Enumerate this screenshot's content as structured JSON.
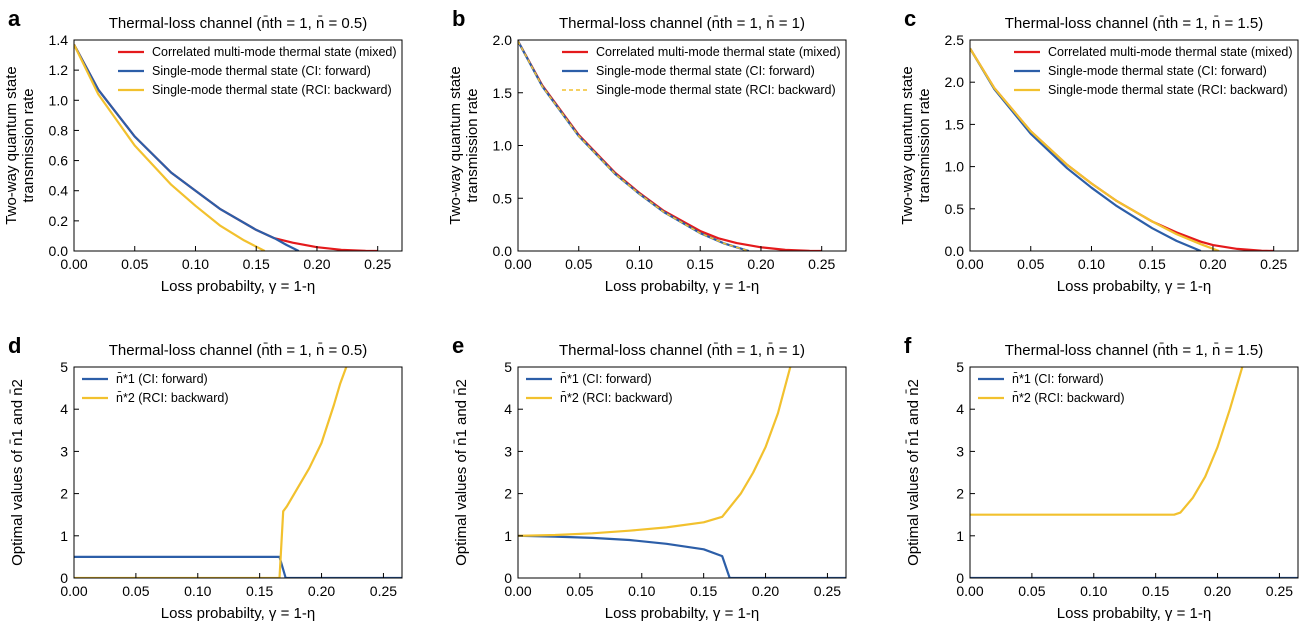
{
  "chart_data": [
    {
      "panel": "a",
      "type": "line",
      "title": "Thermal-loss channel (n̄th = 1, n̄ = 0.5)",
      "xlabel": "Loss probabilty, γ = 1-η",
      "ylabel": [
        "Two-way quantum state",
        "transmission rate"
      ],
      "xlim": [
        0,
        0.27
      ],
      "ylim": [
        0,
        1.4
      ],
      "xticks": [
        "0.00",
        "0.05",
        "0.10",
        "0.15",
        "0.20",
        "0.25"
      ],
      "yticks": [
        "0.0",
        "0.2",
        "0.4",
        "0.6",
        "0.8",
        "1.0",
        "1.2",
        "1.4"
      ],
      "legend": "top-right",
      "series": [
        {
          "name": "Correlated multi-mode thermal state (mixed)",
          "color": "#e41a1c",
          "style": "solid",
          "x": [
            0,
            0.02,
            0.05,
            0.08,
            0.1,
            0.12,
            0.15,
            0.165,
            0.18,
            0.2,
            0.22,
            0.24,
            0.25
          ],
          "y": [
            1.37,
            1.07,
            0.76,
            0.52,
            0.4,
            0.28,
            0.14,
            0.085,
            0.055,
            0.025,
            0.008,
            0.001,
            0
          ]
        },
        {
          "name": "Single-mode thermal state (CI: forward)",
          "color": "#2c5ea8",
          "style": "solid",
          "x": [
            0,
            0.02,
            0.05,
            0.08,
            0.1,
            0.12,
            0.15,
            0.165,
            0.175,
            0.185
          ],
          "y": [
            1.37,
            1.07,
            0.76,
            0.52,
            0.4,
            0.28,
            0.14,
            0.085,
            0.04,
            0
          ]
        },
        {
          "name": "Single-mode thermal state (RCI: backward)",
          "color": "#f2c12e",
          "style": "solid",
          "x": [
            0,
            0.02,
            0.05,
            0.08,
            0.1,
            0.12,
            0.14,
            0.157
          ],
          "y": [
            1.37,
            1.04,
            0.7,
            0.44,
            0.3,
            0.17,
            0.07,
            0
          ]
        }
      ]
    },
    {
      "panel": "b",
      "type": "line",
      "title": "Thermal-loss channel (n̄th = 1, n̄ = 1)",
      "xlabel": "Loss probabilty, γ = 1-η",
      "ylabel": [
        "Two-way quantum state",
        "transmission rate"
      ],
      "xlim": [
        0,
        0.27
      ],
      "ylim": [
        0,
        2.0
      ],
      "xticks": [
        "0.00",
        "0.05",
        "0.10",
        "0.15",
        "0.20",
        "0.25"
      ],
      "yticks": [
        "0.0",
        "0.5",
        "1.0",
        "1.5",
        "2.0"
      ],
      "legend": "top-right",
      "series": [
        {
          "name": "Correlated multi-mode thermal state (mixed)",
          "color": "#e41a1c",
          "style": "solid",
          "x": [
            0,
            0.02,
            0.05,
            0.08,
            0.1,
            0.12,
            0.15,
            0.165,
            0.18,
            0.2,
            0.22,
            0.24,
            0.25
          ],
          "y": [
            1.99,
            1.57,
            1.1,
            0.74,
            0.55,
            0.38,
            0.19,
            0.12,
            0.075,
            0.035,
            0.01,
            0.001,
            0
          ]
        },
        {
          "name": "Single-mode thermal state (CI: forward)",
          "color": "#2c5ea8",
          "style": "solid",
          "x": [
            0,
            0.02,
            0.05,
            0.08,
            0.1,
            0.12,
            0.15,
            0.17,
            0.19
          ],
          "y": [
            1.99,
            1.56,
            1.09,
            0.73,
            0.54,
            0.37,
            0.17,
            0.07,
            0
          ]
        },
        {
          "name": "Single-mode thermal state (RCI: backward)",
          "color": "#f2c12e",
          "style": "dashed",
          "x": [
            0,
            0.02,
            0.05,
            0.08,
            0.1,
            0.12,
            0.15,
            0.17,
            0.19
          ],
          "y": [
            1.99,
            1.56,
            1.09,
            0.73,
            0.54,
            0.37,
            0.17,
            0.07,
            0
          ]
        }
      ]
    },
    {
      "panel": "c",
      "type": "line",
      "title": "Thermal-loss channel (n̄th = 1, n̄ = 1.5)",
      "xlabel": "Loss probabilty, γ = 1-η",
      "ylabel": [
        "Two-way quantum state",
        "transmission rate"
      ],
      "xlim": [
        0,
        0.27
      ],
      "ylim": [
        0,
        2.5
      ],
      "xticks": [
        "0.00",
        "0.05",
        "0.10",
        "0.15",
        "0.20",
        "0.25"
      ],
      "yticks": [
        "0.0",
        "0.5",
        "1.0",
        "1.5",
        "2.0",
        "2.5"
      ],
      "legend": "top-right",
      "series": [
        {
          "name": "Correlated multi-mode thermal state (mixed)",
          "color": "#e41a1c",
          "style": "solid",
          "x": [
            0,
            0.02,
            0.05,
            0.08,
            0.1,
            0.12,
            0.15,
            0.17,
            0.19,
            0.2,
            0.22,
            0.24,
            0.25
          ],
          "y": [
            2.4,
            1.93,
            1.42,
            1.02,
            0.8,
            0.6,
            0.35,
            0.22,
            0.11,
            0.07,
            0.025,
            0.003,
            0
          ]
        },
        {
          "name": "Single-mode thermal state (CI: forward)",
          "color": "#2c5ea8",
          "style": "solid",
          "x": [
            0,
            0.02,
            0.05,
            0.08,
            0.1,
            0.12,
            0.15,
            0.17,
            0.19
          ],
          "y": [
            2.4,
            1.92,
            1.39,
            0.98,
            0.75,
            0.54,
            0.27,
            0.12,
            0
          ]
        },
        {
          "name": "Single-mode thermal state (RCI: backward)",
          "color": "#f2c12e",
          "style": "solid",
          "x": [
            0,
            0.02,
            0.05,
            0.08,
            0.1,
            0.12,
            0.15,
            0.17,
            0.19,
            0.205
          ],
          "y": [
            2.4,
            1.93,
            1.42,
            1.02,
            0.8,
            0.6,
            0.35,
            0.2,
            0.08,
            0
          ]
        }
      ]
    },
    {
      "panel": "d",
      "type": "line",
      "title": "Thermal-loss channel (n̄th = 1, n̄ = 0.5)",
      "xlabel": "Loss probabilty, γ = 1-η",
      "ylabel": [
        "Optimal values of n̄1 and n̄2"
      ],
      "xlim": [
        0,
        0.265
      ],
      "ylim": [
        0,
        5
      ],
      "xticks": [
        "0.00",
        "0.05",
        "0.10",
        "0.15",
        "0.20",
        "0.25"
      ],
      "yticks": [
        "0",
        "1",
        "2",
        "3",
        "4",
        "5"
      ],
      "legend": "top-left",
      "series": [
        {
          "name": "n̄*1 (CI: forward)",
          "color": "#2c5ea8",
          "style": "solid",
          "x": [
            0,
            0.166,
            0.171,
            0.265
          ],
          "y": [
            0.5,
            0.5,
            0,
            0
          ]
        },
        {
          "name": "n̄*2 (RCI: backward)",
          "color": "#f2c12e",
          "style": "solid",
          "x": [
            0,
            0.166,
            0.169,
            0.172,
            0.18,
            0.19,
            0.2,
            0.21,
            0.215,
            0.22
          ],
          "y": [
            0,
            0,
            1.58,
            1.7,
            2.1,
            2.6,
            3.2,
            4.1,
            4.6,
            5.0
          ]
        }
      ]
    },
    {
      "panel": "e",
      "type": "line",
      "title": "Thermal-loss channel (n̄th = 1, n̄ = 1)",
      "xlabel": "Loss probabilty, γ = 1-η",
      "ylabel": [
        "Optimal values of n̄1 and n̄2"
      ],
      "xlim": [
        0,
        0.265
      ],
      "ylim": [
        0,
        5
      ],
      "xticks": [
        "0.00",
        "0.05",
        "0.10",
        "0.15",
        "0.20",
        "0.25"
      ],
      "yticks": [
        "0",
        "1",
        "2",
        "3",
        "4",
        "5"
      ],
      "legend": "top-left",
      "series": [
        {
          "name": "n̄*1 (CI: forward)",
          "color": "#2c5ea8",
          "style": "solid",
          "x": [
            0,
            0.03,
            0.06,
            0.09,
            0.12,
            0.15,
            0.165,
            0.171,
            0.265
          ],
          "y": [
            1.0,
            0.98,
            0.95,
            0.9,
            0.81,
            0.68,
            0.52,
            0,
            0
          ]
        },
        {
          "name": "n̄*2 (RCI: backward)",
          "color": "#f2c12e",
          "style": "solid",
          "x": [
            0,
            0.03,
            0.06,
            0.09,
            0.12,
            0.15,
            0.165,
            0.18,
            0.19,
            0.2,
            0.21,
            0.22
          ],
          "y": [
            1.0,
            1.02,
            1.06,
            1.12,
            1.2,
            1.32,
            1.45,
            2.0,
            2.5,
            3.1,
            3.9,
            5.0
          ]
        }
      ]
    },
    {
      "panel": "f",
      "type": "line",
      "title": "Thermal-loss channel (n̄th = 1, n̄ = 1.5)",
      "xlabel": "Loss probabilty, γ = 1-η",
      "ylabel": [
        "Optimal values of n̄1 and n̄2"
      ],
      "xlim": [
        0,
        0.265
      ],
      "ylim": [
        0,
        5
      ],
      "xticks": [
        "0.00",
        "0.05",
        "0.10",
        "0.15",
        "0.20",
        "0.25"
      ],
      "yticks": [
        "0",
        "1",
        "2",
        "3",
        "4",
        "5"
      ],
      "legend": "top-left",
      "series": [
        {
          "name": "n̄*1 (CI: forward)",
          "color": "#2c5ea8",
          "style": "solid",
          "x": [
            0,
            0.265
          ],
          "y": [
            0,
            0
          ]
        },
        {
          "name": "n̄*2 (RCI: backward)",
          "color": "#f2c12e",
          "style": "solid",
          "x": [
            0,
            0.165,
            0.17,
            0.18,
            0.19,
            0.2,
            0.21,
            0.22
          ],
          "y": [
            1.5,
            1.5,
            1.55,
            1.9,
            2.4,
            3.1,
            4.0,
            5.0
          ]
        }
      ]
    }
  ]
}
